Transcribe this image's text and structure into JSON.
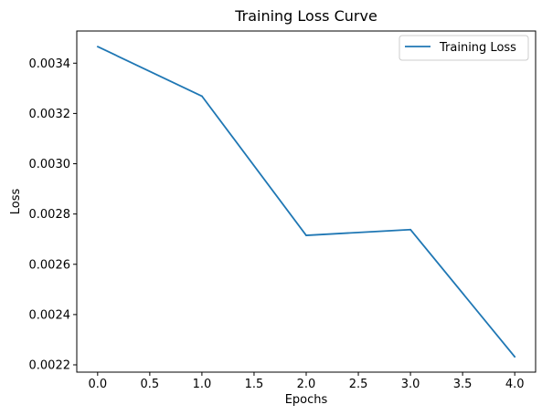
{
  "chart_data": {
    "type": "line",
    "title": "Training Loss Curve",
    "xlabel": "Epochs",
    "ylabel": "Loss",
    "x": [
      0,
      1,
      2,
      3,
      4
    ],
    "series": [
      {
        "name": "Training Loss",
        "color": "#1f77b4",
        "values": [
          0.003466,
          0.003269,
          0.002715,
          0.002738,
          0.002232
        ]
      }
    ],
    "xlim": [
      -0.2,
      4.2
    ],
    "ylim": [
      0.002171,
      0.003528
    ],
    "xticks": [
      0.0,
      0.5,
      1.0,
      1.5,
      2.0,
      2.5,
      3.0,
      3.5,
      4.0
    ],
    "xtick_labels": [
      "0.0",
      "0.5",
      "1.0",
      "1.5",
      "2.0",
      "2.5",
      "3.0",
      "3.5",
      "4.0"
    ],
    "yticks": [
      0.0022,
      0.0024,
      0.0026,
      0.0028,
      0.003,
      0.0032,
      0.0034
    ],
    "ytick_labels": [
      "0.0022",
      "0.0024",
      "0.0026",
      "0.0028",
      "0.0030",
      "0.0032",
      "0.0034"
    ],
    "grid": false,
    "legend_position": "top-right"
  }
}
